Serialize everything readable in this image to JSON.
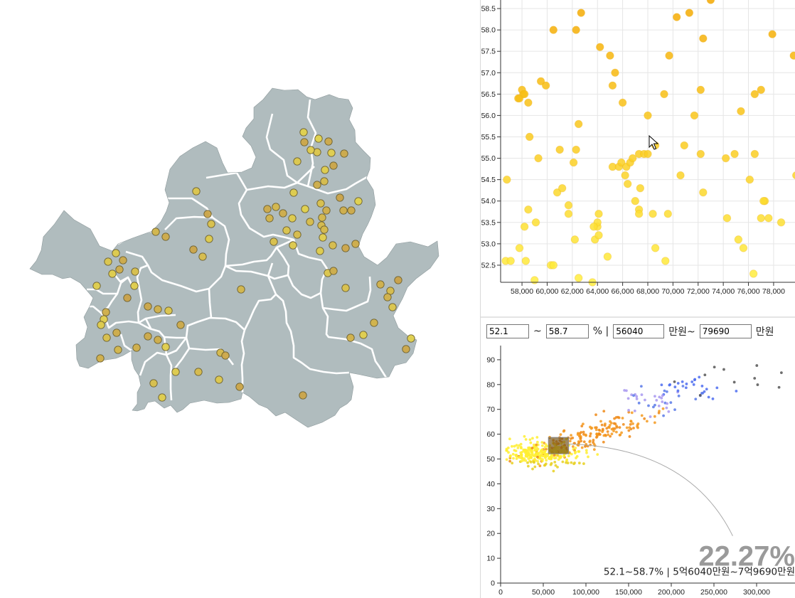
{
  "map": {
    "region_fill": "#b0bcbe",
    "border_color": "#ffffff",
    "points": [
      [
        427,
        186
      ],
      [
        448,
        195
      ],
      [
        462,
        199
      ],
      [
        428,
        200
      ],
      [
        446,
        214
      ],
      [
        466,
        215
      ],
      [
        484,
        216
      ],
      [
        437,
        211
      ],
      [
        418,
        227
      ],
      [
        469,
        233
      ],
      [
        457,
        239
      ],
      [
        456,
        255
      ],
      [
        446,
        260
      ],
      [
        413,
        271
      ],
      [
        478,
        278
      ],
      [
        451,
        286
      ],
      [
        504,
        283
      ],
      [
        376,
        294
      ],
      [
        388,
        291
      ],
      [
        398,
        300
      ],
      [
        379,
        307
      ],
      [
        411,
        307
      ],
      [
        429,
        294
      ],
      [
        459,
        296
      ],
      [
        483,
        296
      ],
      [
        494,
        296
      ],
      [
        453,
        306
      ],
      [
        436,
        312
      ],
      [
        452,
        317
      ],
      [
        403,
        324
      ],
      [
        418,
        330
      ],
      [
        456,
        323
      ],
      [
        454,
        334
      ],
      [
        385,
        340
      ],
      [
        412,
        345
      ],
      [
        468,
        345
      ],
      [
        500,
        343
      ],
      [
        486,
        349
      ],
      [
        450,
        353
      ],
      [
        461,
        384
      ],
      [
        469,
        381
      ],
      [
        486,
        405
      ],
      [
        276,
        269
      ],
      [
        292,
        301
      ],
      [
        297,
        315
      ],
      [
        294,
        336
      ],
      [
        272,
        351
      ],
      [
        285,
        361
      ],
      [
        219,
        326
      ],
      [
        233,
        333
      ],
      [
        163,
        356
      ],
      [
        152,
        368
      ],
      [
        173,
        366
      ],
      [
        190,
        382
      ],
      [
        168,
        379
      ],
      [
        158,
        385
      ],
      [
        136,
        402
      ],
      [
        189,
        402
      ],
      [
        179,
        419
      ],
      [
        208,
        431
      ],
      [
        222,
        435
      ],
      [
        237,
        437
      ],
      [
        149,
        439
      ],
      [
        146,
        449
      ],
      [
        142,
        457
      ],
      [
        150,
        475
      ],
      [
        164,
        468
      ],
      [
        208,
        473
      ],
      [
        222,
        478
      ],
      [
        233,
        488
      ],
      [
        192,
        489
      ],
      [
        166,
        492
      ],
      [
        141,
        504
      ],
      [
        254,
        457
      ],
      [
        339,
        407
      ],
      [
        535,
        400
      ],
      [
        560,
        394
      ],
      [
        549,
        409
      ],
      [
        545,
        418
      ],
      [
        552,
        432
      ],
      [
        526,
        454
      ],
      [
        511,
        471
      ],
      [
        493,
        475
      ],
      [
        578,
        476
      ],
      [
        571,
        491
      ],
      [
        310,
        496
      ],
      [
        317,
        500
      ],
      [
        279,
        523
      ],
      [
        308,
        534
      ],
      [
        337,
        544
      ],
      [
        247,
        523
      ],
      [
        216,
        539
      ],
      [
        228,
        559
      ],
      [
        426,
        556
      ]
    ]
  },
  "chart1": {
    "x_ticks": [
      "58,000",
      "60,000",
      "62,000",
      "64,000",
      "66,000",
      "68,000",
      "70,000",
      "72,000",
      "74,000",
      "76,000",
      "78,000"
    ],
    "y_ticks": [
      "52.5",
      "53.0",
      "53.5",
      "54.0",
      "54.5",
      "55.0",
      "55.5",
      "56.0",
      "56.5",
      "57.0",
      "57.5",
      "58.0",
      "58.5"
    ]
  },
  "chart_data": [
    {
      "type": "scatter",
      "title": "",
      "xlabel": "",
      "ylabel": "",
      "xlim": [
        56300,
        79700
      ],
      "ylim": [
        52.1,
        58.7
      ],
      "grid": true,
      "color_low": "#ffee40",
      "color_high": "#f5a800",
      "points": [
        [
          57700,
          56.4
        ],
        [
          58100,
          56.5
        ],
        [
          58000,
          56.6
        ],
        [
          57800,
          56.4
        ],
        [
          58200,
          56.5
        ],
        [
          58500,
          56.3
        ],
        [
          59500,
          56.8
        ],
        [
          59900,
          56.7
        ],
        [
          60500,
          58.0
        ],
        [
          58600,
          55.5
        ],
        [
          59300,
          55.0
        ],
        [
          59100,
          53.5
        ],
        [
          60800,
          54.2
        ],
        [
          61200,
          54.3
        ],
        [
          61000,
          55.2
        ],
        [
          61700,
          53.9
        ],
        [
          61700,
          53.7
        ],
        [
          62200,
          53.1
        ],
        [
          62100,
          54.9
        ],
        [
          62300,
          55.2
        ],
        [
          62500,
          55.8
        ],
        [
          62700,
          58.4
        ],
        [
          62300,
          58.0
        ],
        [
          64200,
          57.6
        ],
        [
          65000,
          57.4
        ],
        [
          65400,
          57.0
        ],
        [
          65200,
          56.7
        ],
        [
          66000,
          56.3
        ],
        [
          65200,
          54.8
        ],
        [
          65700,
          54.8
        ],
        [
          65900,
          54.9
        ],
        [
          66200,
          54.6
        ],
        [
          66300,
          54.8
        ],
        [
          66400,
          54.4
        ],
        [
          66600,
          54.9
        ],
        [
          66800,
          55.0
        ],
        [
          67300,
          55.1
        ],
        [
          67700,
          55.1
        ],
        [
          68600,
          55.3
        ],
        [
          68000,
          55.1
        ],
        [
          67400,
          54.3
        ],
        [
          67000,
          54.0
        ],
        [
          67300,
          53.8
        ],
        [
          67300,
          53.7
        ],
        [
          68400,
          53.7
        ],
        [
          69600,
          53.7
        ],
        [
          68600,
          52.9
        ],
        [
          72400,
          57.8
        ],
        [
          73000,
          58.7
        ],
        [
          70300,
          58.3
        ],
        [
          71300,
          58.4
        ],
        [
          69300,
          56.5
        ],
        [
          71700,
          56.0
        ],
        [
          72200,
          56.6
        ],
        [
          74200,
          55.0
        ],
        [
          74900,
          55.1
        ],
        [
          77900,
          57.9
        ],
        [
          76500,
          56.5
        ],
        [
          77000,
          56.6
        ],
        [
          75400,
          56.1
        ],
        [
          76500,
          55.1
        ],
        [
          76100,
          54.5
        ],
        [
          77300,
          54.0
        ],
        [
          77000,
          53.6
        ],
        [
          77600,
          53.6
        ],
        [
          75200,
          53.1
        ],
        [
          75600,
          52.9
        ],
        [
          78600,
          53.5
        ],
        [
          79600,
          57.4
        ],
        [
          79800,
          54.6
        ],
        [
          56800,
          54.5
        ],
        [
          56700,
          52.6
        ],
        [
          57100,
          52.6
        ],
        [
          58300,
          52.6
        ],
        [
          57800,
          52.9
        ],
        [
          58200,
          53.4
        ],
        [
          58500,
          53.8
        ],
        [
          63800,
          53.1
        ],
        [
          64100,
          53.2
        ],
        [
          64000,
          53.4
        ],
        [
          64000,
          53.5
        ],
        [
          64100,
          53.7
        ],
        [
          63700,
          53.4
        ],
        [
          60300,
          52.5
        ],
        [
          62500,
          52.2
        ],
        [
          63600,
          52.1
        ],
        [
          69400,
          52.6
        ],
        [
          76400,
          52.3
        ],
        [
          77200,
          54.0
        ],
        [
          59000,
          52.15
        ],
        [
          70900,
          55.3
        ],
        [
          72200,
          55.1
        ],
        [
          72400,
          54.2
        ],
        [
          69700,
          57.4
        ],
        [
          68000,
          56.0
        ],
        [
          70600,
          54.6
        ],
        [
          60500,
          52.5
        ],
        [
          64800,
          52.7
        ],
        [
          74300,
          53.6
        ]
      ]
    },
    {
      "type": "scatter",
      "title": "",
      "xlabel": "",
      "ylabel": "",
      "xlim": [
        0,
        345000
      ],
      "ylim": [
        0,
        98
      ],
      "grid": false,
      "x_ticks": [
        "0",
        "50,000",
        "100,000",
        "150,000",
        "200,000",
        "250,000",
        "300,000"
      ],
      "y_ticks": [
        "0",
        "10",
        "20",
        "30",
        "40",
        "50",
        "60",
        "70",
        "80",
        "90"
      ],
      "selection": {
        "x": [
          56040,
          79690
        ],
        "y": [
          52.1,
          58.7
        ]
      },
      "selection_fill": "#6b4a10",
      "percent": "22.27%",
      "caption": "52.1~58.7% | 5억6040만원~7억9690만원",
      "series_colors": [
        "#e8d020",
        "#ffee30",
        "#f59a20",
        "#ef8a18",
        "#a898f0",
        "#5a7ae8",
        "#4c6cf0",
        "#555555"
      ]
    }
  ],
  "filter": {
    "min_pct": "52.1",
    "max_pct": "58.7",
    "min_price": "56040",
    "max_price": "79690",
    "tilde": "~",
    "pct_unit": "% |",
    "price_unit_1": "만원~",
    "price_unit_2": "만원"
  }
}
